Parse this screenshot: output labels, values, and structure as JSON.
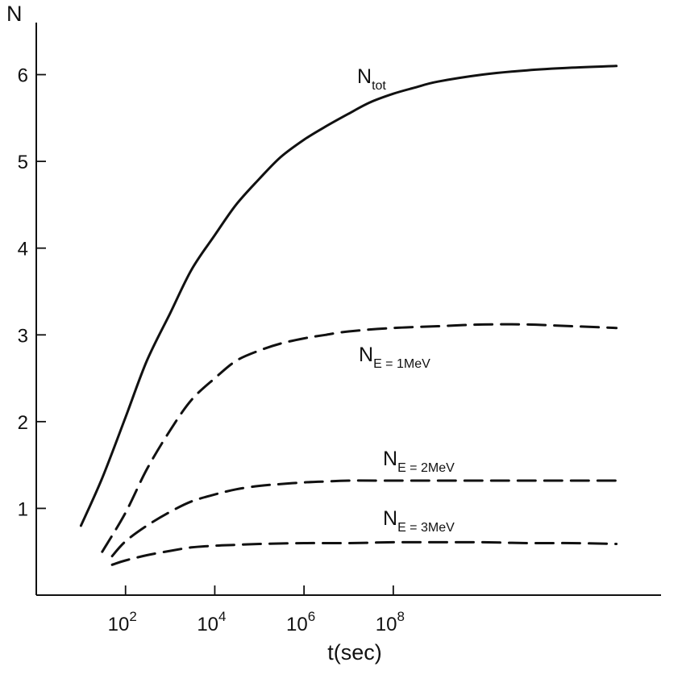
{
  "chart_data": {
    "type": "line",
    "title": "",
    "xlabel": "t(sec)",
    "ylabel": "N",
    "x_scale": "log",
    "xlim": [
      1.0,
      100000000000000
    ],
    "ylim": [
      0,
      6.6
    ],
    "x_ticks": [
      {
        "value": 100,
        "base": "10",
        "exp": "2"
      },
      {
        "value": 10000,
        "base": "10",
        "exp": "4"
      },
      {
        "value": 1000000,
        "base": "10",
        "exp": "6"
      },
      {
        "value": 100000000,
        "base": "10",
        "exp": "8"
      }
    ],
    "y_ticks": [
      {
        "value": 1,
        "label": "1"
      },
      {
        "value": 2,
        "label": "2"
      },
      {
        "value": 3,
        "label": "3"
      },
      {
        "value": 4,
        "label": "4"
      },
      {
        "value": 5,
        "label": "5"
      },
      {
        "value": 6,
        "label": "6"
      }
    ],
    "grid": false,
    "legend": "none",
    "series": [
      {
        "label_main": "N",
        "label_sub": "tot",
        "style": "solid",
        "x": [
          10,
          30,
          100,
          300,
          1000,
          3000,
          10000,
          30000,
          100000,
          300000,
          1000000,
          3000000,
          10000000,
          30000000,
          100000000,
          300000000,
          1000000000,
          10000000000,
          100000000000,
          1000000000000,
          10000000000000
        ],
        "y": [
          0.8,
          1.35,
          2.05,
          2.7,
          3.25,
          3.75,
          4.15,
          4.5,
          4.8,
          5.05,
          5.25,
          5.4,
          5.55,
          5.68,
          5.78,
          5.85,
          5.92,
          6.0,
          6.05,
          6.08,
          6.1
        ]
      },
      {
        "label_main": "N",
        "label_sub": "E = 1MeV",
        "style": "dashed",
        "x": [
          30,
          100,
          300,
          1000,
          3000,
          10000,
          30000,
          100000,
          300000,
          1000000,
          3000000,
          10000000,
          100000000,
          1000000000,
          10000000000,
          100000000000,
          1000000000000,
          10000000000000
        ],
        "y": [
          0.5,
          0.95,
          1.45,
          1.9,
          2.25,
          2.5,
          2.7,
          2.82,
          2.9,
          2.96,
          3.0,
          3.04,
          3.08,
          3.1,
          3.12,
          3.12,
          3.1,
          3.08
        ]
      },
      {
        "label_main": "N",
        "label_sub": "E = 2MeV",
        "style": "dashed",
        "x": [
          50,
          100,
          300,
          1000,
          3000,
          10000,
          30000,
          100000,
          300000,
          1000000,
          3000000,
          10000000,
          100000000,
          1000000000,
          10000000000,
          100000000000,
          1000000000000,
          10000000000000
        ],
        "y": [
          0.45,
          0.62,
          0.8,
          0.96,
          1.08,
          1.16,
          1.22,
          1.26,
          1.28,
          1.3,
          1.31,
          1.32,
          1.32,
          1.32,
          1.32,
          1.32,
          1.32,
          1.32
        ]
      },
      {
        "label_main": "N",
        "label_sub": "E = 3MeV",
        "style": "dashed",
        "x": [
          50,
          100,
          300,
          1000,
          3000,
          10000,
          30000,
          100000,
          1000000,
          10000000,
          100000000,
          1000000000,
          10000000000,
          100000000000,
          1000000000000,
          10000000000000
        ],
        "y": [
          0.35,
          0.4,
          0.46,
          0.51,
          0.55,
          0.57,
          0.58,
          0.59,
          0.6,
          0.6,
          0.61,
          0.61,
          0.61,
          0.6,
          0.6,
          0.59
        ]
      }
    ]
  }
}
